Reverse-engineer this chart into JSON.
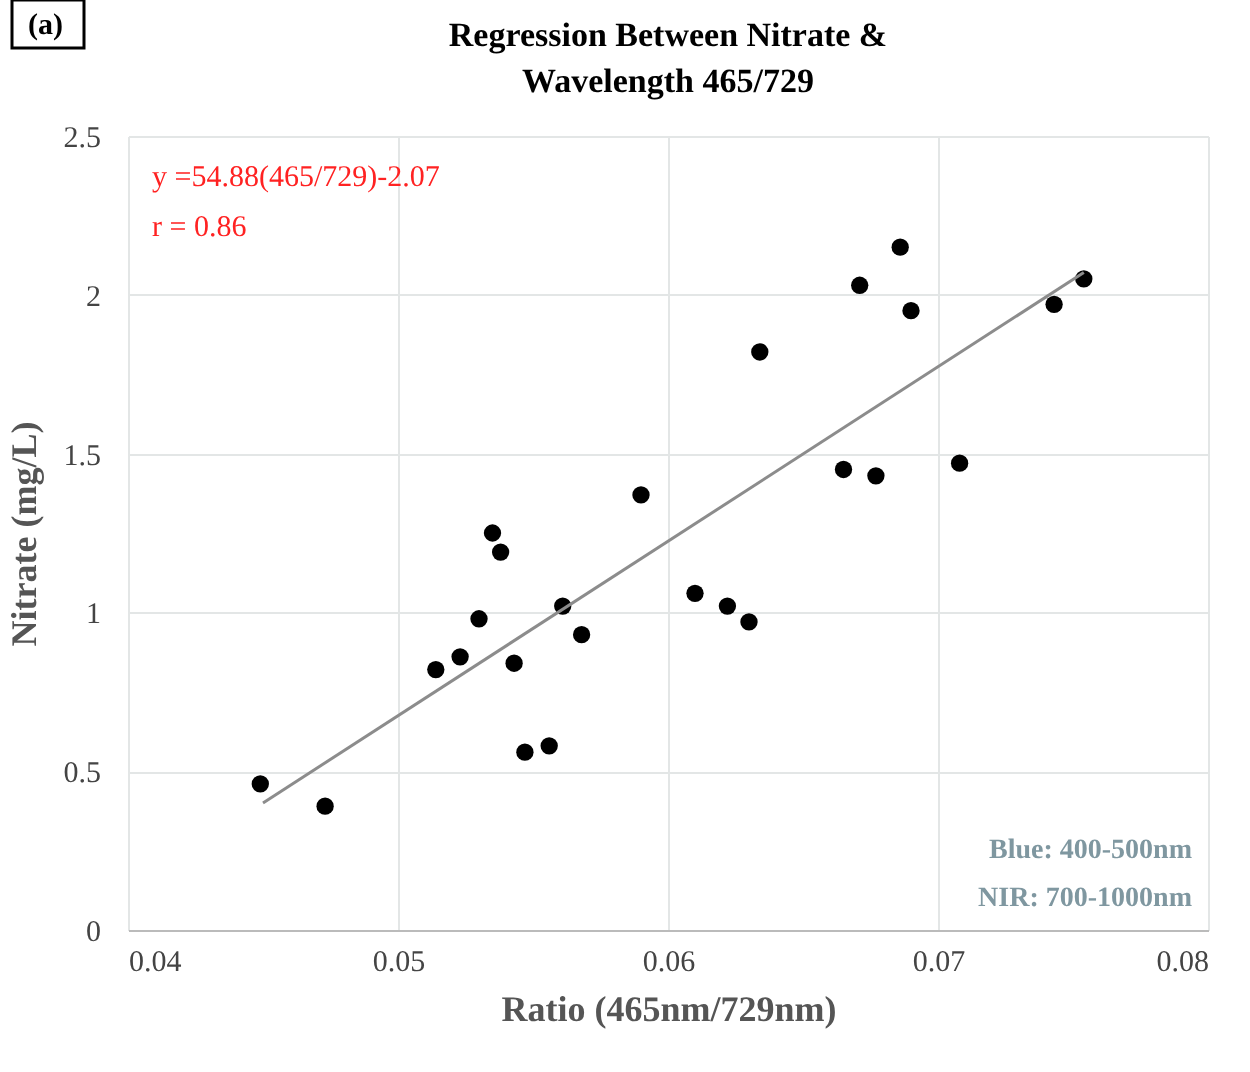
{
  "chart_data": {
    "type": "scatter",
    "title": [
      "Regression Between Nitrate &",
      "Wavelength 465/729"
    ],
    "xlabel": "Ratio (465nm/729nm)",
    "ylabel": "Nitrate (mg/L)",
    "annotations": [
      "(a)",
      "y =54.88(465/729)-2.07",
      "r = 0.86",
      "Blue: 400-500nm",
      "NIR: 700-1000nm"
    ],
    "series": [
      {
        "color": "#000000",
        "marker": "circle",
        "x": [
          0.0449,
          0.0473,
          0.0514,
          0.0523,
          0.053,
          0.0535,
          0.0538,
          0.0543,
          0.0547,
          0.0556,
          0.0561,
          0.0568,
          0.059,
          0.061,
          0.0622,
          0.063,
          0.0634,
          0.0665,
          0.0671,
          0.0677,
          0.0686,
          0.069,
          0.0708,
          0.0743,
          0.0754
        ],
        "values": [
          0.46,
          0.39,
          0.82,
          0.86,
          0.98,
          1.25,
          1.19,
          0.84,
          0.56,
          0.58,
          1.02,
          0.93,
          1.37,
          1.06,
          1.02,
          0.97,
          1.82,
          1.45,
          2.03,
          1.43,
          2.15,
          1.95,
          1.47,
          1.97,
          2.05
        ]
      },
      {
        "type": "line",
        "color": "#8c8c8c",
        "line_style": "solid",
        "x": [
          0.045,
          0.0754
        ],
        "values": [
          0.4,
          2.07
        ]
      }
    ],
    "xlim": [
      0.04,
      0.08
    ],
    "xticks": [
      0.04,
      0.05,
      0.06,
      0.07,
      0.08
    ],
    "ylim": [
      0,
      2.5
    ],
    "yticks": [
      0,
      0.5,
      1,
      1.5,
      2,
      2.5
    ],
    "grid": true
  }
}
